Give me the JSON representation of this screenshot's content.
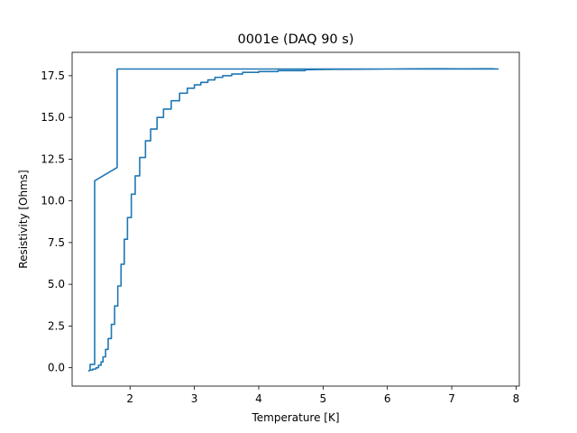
{
  "chart_data": {
    "type": "line",
    "title": "0001e (DAQ 90 s)",
    "xlabel": "Temperature [K]",
    "ylabel": "Resistivity [Ohms]",
    "xlim": [
      1.1,
      8.05
    ],
    "ylim": [
      -1.1,
      18.9
    ],
    "xticks": [
      2,
      3,
      4,
      5,
      6,
      7,
      8
    ],
    "xtick_labels": [
      "2",
      "3",
      "4",
      "5",
      "6",
      "7",
      "8"
    ],
    "yticks": [
      0.0,
      2.5,
      5.0,
      7.5,
      10.0,
      12.5,
      15.0,
      17.5
    ],
    "ytick_labels": [
      "0.0",
      "2.5",
      "5.0",
      "7.5",
      "10.0",
      "12.5",
      "15.0",
      "17.5"
    ],
    "grid": false,
    "legend": "none",
    "colors": {
      "series": "#1f77b4",
      "axes": "#000000",
      "background": "#ffffff"
    },
    "series": [
      {
        "points": [
          [
            1.35,
            -0.2
          ],
          [
            1.38,
            -0.15
          ],
          [
            1.38,
            0.2
          ],
          [
            1.45,
            0.2
          ],
          [
            1.45,
            11.2
          ],
          [
            1.8,
            12.0
          ],
          [
            1.8,
            17.9
          ],
          [
            2.5,
            17.9
          ],
          [
            3.5,
            17.9
          ],
          [
            4.5,
            17.9
          ],
          [
            5.5,
            17.9
          ],
          [
            6.5,
            17.9
          ],
          [
            7.72,
            17.9
          ],
          [
            7.6,
            17.92
          ],
          [
            7.2,
            17.91
          ],
          [
            6.8,
            17.92
          ],
          [
            6.4,
            17.91
          ],
          [
            6.0,
            17.9
          ],
          [
            5.6,
            17.89
          ],
          [
            5.2,
            17.88
          ],
          [
            4.8,
            17.86
          ],
          [
            4.72,
            17.85
          ],
          [
            4.72,
            17.8
          ],
          [
            4.3,
            17.8
          ],
          [
            4.3,
            17.75
          ],
          [
            4.0,
            17.75
          ],
          [
            4.0,
            17.7
          ],
          [
            3.75,
            17.7
          ],
          [
            3.75,
            17.6
          ],
          [
            3.58,
            17.6
          ],
          [
            3.58,
            17.5
          ],
          [
            3.44,
            17.5
          ],
          [
            3.44,
            17.4
          ],
          [
            3.32,
            17.4
          ],
          [
            3.32,
            17.25
          ],
          [
            3.21,
            17.25
          ],
          [
            3.21,
            17.1
          ],
          [
            3.1,
            17.1
          ],
          [
            3.1,
            16.95
          ],
          [
            3.0,
            16.95
          ],
          [
            3.0,
            16.75
          ],
          [
            2.89,
            16.75
          ],
          [
            2.89,
            16.45
          ],
          [
            2.77,
            16.45
          ],
          [
            2.77,
            16.0
          ],
          [
            2.64,
            16.0
          ],
          [
            2.64,
            15.5
          ],
          [
            2.52,
            15.5
          ],
          [
            2.52,
            15.0
          ],
          [
            2.42,
            15.0
          ],
          [
            2.42,
            14.3
          ],
          [
            2.32,
            14.3
          ],
          [
            2.32,
            13.6
          ],
          [
            2.24,
            13.6
          ],
          [
            2.24,
            12.6
          ],
          [
            2.15,
            12.6
          ],
          [
            2.15,
            11.5
          ],
          [
            2.08,
            11.5
          ],
          [
            2.08,
            10.4
          ],
          [
            2.02,
            10.4
          ],
          [
            2.02,
            9.0
          ],
          [
            1.96,
            9.0
          ],
          [
            1.96,
            7.7
          ],
          [
            1.91,
            7.7
          ],
          [
            1.91,
            6.2
          ],
          [
            1.86,
            6.2
          ],
          [
            1.86,
            4.9
          ],
          [
            1.81,
            4.9
          ],
          [
            1.81,
            3.7
          ],
          [
            1.76,
            3.7
          ],
          [
            1.76,
            2.6
          ],
          [
            1.71,
            2.6
          ],
          [
            1.71,
            1.75
          ],
          [
            1.66,
            1.75
          ],
          [
            1.66,
            1.1
          ],
          [
            1.62,
            1.1
          ],
          [
            1.62,
            0.65
          ],
          [
            1.58,
            0.65
          ],
          [
            1.58,
            0.35
          ],
          [
            1.55,
            0.35
          ],
          [
            1.55,
            0.15
          ],
          [
            1.51,
            0.15
          ],
          [
            1.51,
            0.0
          ],
          [
            1.47,
            0.0
          ],
          [
            1.47,
            -0.08
          ],
          [
            1.42,
            -0.08
          ],
          [
            1.42,
            -0.14
          ],
          [
            1.36,
            -0.14
          ]
        ]
      }
    ]
  }
}
